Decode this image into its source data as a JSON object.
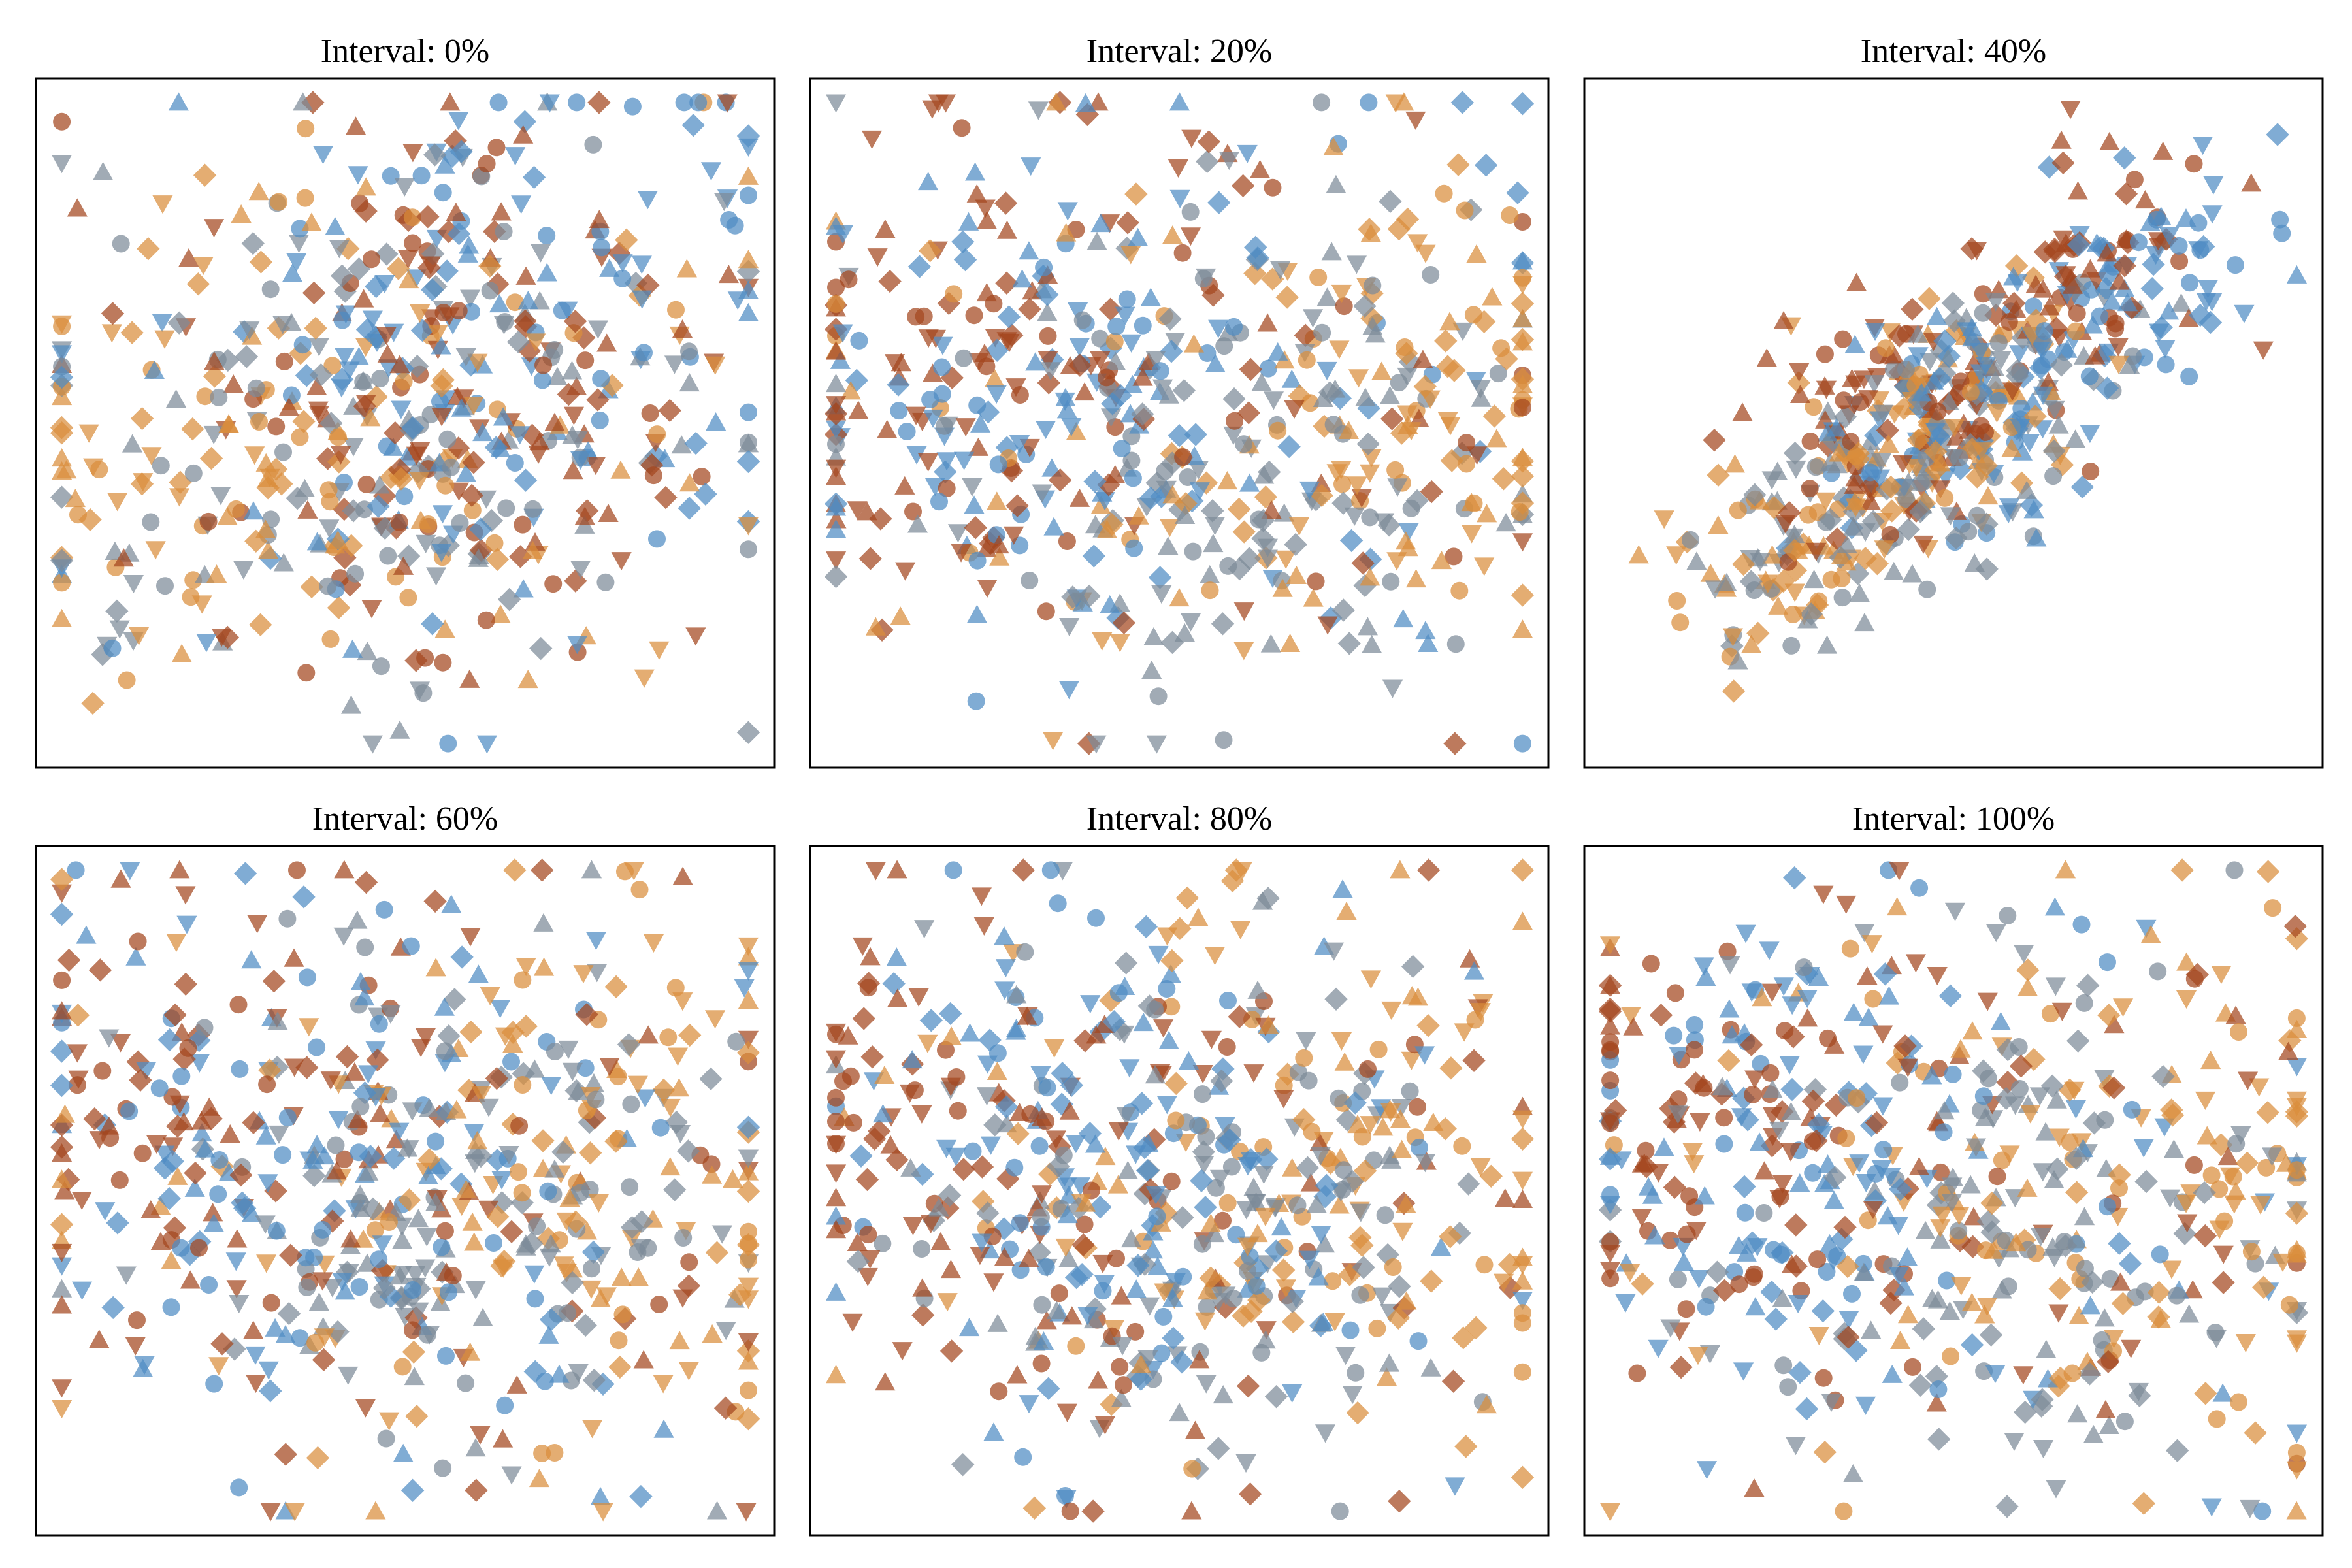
{
  "figure": {
    "description_type": "tsne-scatter-grid"
  },
  "chart_data": [
    {
      "type": "scatter",
      "title": "Interval: 0%",
      "xlim": [
        0,
        1
      ],
      "ylim": [
        0,
        1
      ],
      "grid": false,
      "seed": 11,
      "layout": "round-blob"
    },
    {
      "type": "scatter",
      "title": "Interval: 20%",
      "xlim": [
        0,
        1
      ],
      "ylim": [
        0,
        1
      ],
      "grid": false,
      "seed": 23,
      "layout": "wide-blob"
    },
    {
      "type": "scatter",
      "title": "Interval: 40%",
      "xlim": [
        0,
        1
      ],
      "ylim": [
        0,
        1
      ],
      "grid": false,
      "seed": 37,
      "layout": "diagonal"
    },
    {
      "type": "scatter",
      "title": "Interval: 60%",
      "xlim": [
        0,
        1
      ],
      "ylim": [
        0,
        1
      ],
      "grid": false,
      "seed": 41,
      "layout": "wide-blob"
    },
    {
      "type": "scatter",
      "title": "Interval: 80%",
      "xlim": [
        0,
        1
      ],
      "ylim": [
        0,
        1
      ],
      "grid": false,
      "seed": 53,
      "layout": "wide-blob"
    },
    {
      "type": "scatter",
      "title": "Interval: 100%",
      "xlim": [
        0,
        1
      ],
      "ylim": [
        0,
        1
      ],
      "grid": false,
      "seed": 67,
      "layout": "wide-blob"
    }
  ],
  "series_style": {
    "colors": {
      "blue": "#4f8cc4",
      "orange": "#d98d3c",
      "brown": "#a3461f",
      "gray": "#7d8b99"
    },
    "markers": [
      "circle",
      "diamond",
      "triangle-up",
      "triangle-down"
    ]
  }
}
